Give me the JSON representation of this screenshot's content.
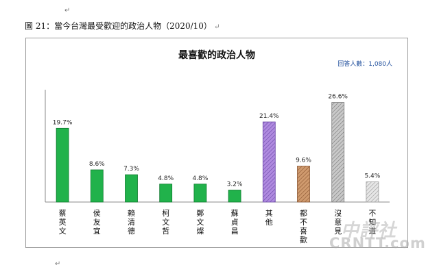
{
  "caption": "圖 21：當今台灣最受歡迎的政治人物（2020/10）",
  "paragraph_mark": "↵",
  "respondents": "回答人數：1,080人",
  "watermark": {
    "line1": "中評社",
    "line2": "CRNTT.com"
  },
  "colors": {
    "green": "#21b24b",
    "green_stroke": "#0e7a2e",
    "purple": "#b08be0",
    "purple_stroke": "#6b48a8",
    "brown": "#cf9a6e",
    "brown_stroke": "#8a5530",
    "gray": "#c9c9c9",
    "gray_stroke": "#777777",
    "lightgray": "#e6e6e6",
    "lightgray_stroke": "#999999"
  },
  "chart_data": {
    "type": "bar",
    "title": "最喜歡的政治人物",
    "categories": [
      "蔡英文",
      "侯友宜",
      "賴清德",
      "柯文哲",
      "鄭文燦",
      "蘇貞昌",
      "其他",
      "都不喜歡",
      "沒意見",
      "不知道"
    ],
    "values": [
      19.7,
      8.6,
      7.3,
      4.8,
      4.8,
      3.2,
      21.4,
      9.6,
      26.6,
      5.4
    ],
    "value_labels": [
      "19.7%",
      "8.6%",
      "7.3%",
      "4.8%",
      "4.8%",
      "3.2%",
      "21.4%",
      "9.6%",
      "26.6%",
      "5.4%"
    ],
    "bar_styles": [
      "green",
      "green",
      "green",
      "green",
      "green",
      "green",
      "purple",
      "brown",
      "gray",
      "lightgray"
    ],
    "hatched": [
      false,
      false,
      false,
      false,
      false,
      false,
      true,
      true,
      true,
      true
    ],
    "ylim": [
      0,
      30
    ],
    "grid": false,
    "legend": "none"
  }
}
